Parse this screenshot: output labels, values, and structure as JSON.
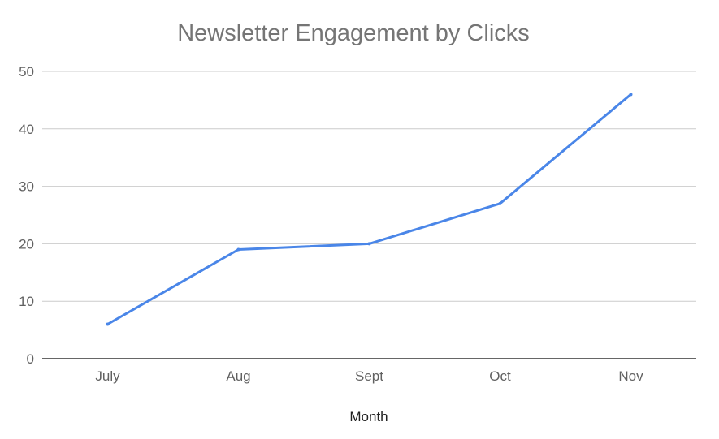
{
  "chart_data": {
    "type": "line",
    "title": "Newsletter Engagement by Clicks",
    "xlabel": "Month",
    "ylabel": "",
    "categories": [
      "July",
      "Aug",
      "Sept",
      "Oct",
      "Nov"
    ],
    "series": [
      {
        "values": [
          6,
          19,
          20,
          27,
          46
        ],
        "color": "#4a86e8"
      }
    ],
    "ylim": [
      0,
      50
    ],
    "yticks": [
      "0",
      "10",
      "20",
      "30",
      "40",
      "50"
    ],
    "grid": true,
    "legend": "none"
  },
  "colors": {
    "gridline": "#cccccc",
    "baseline": "#333333",
    "line": "#4a86e8"
  }
}
